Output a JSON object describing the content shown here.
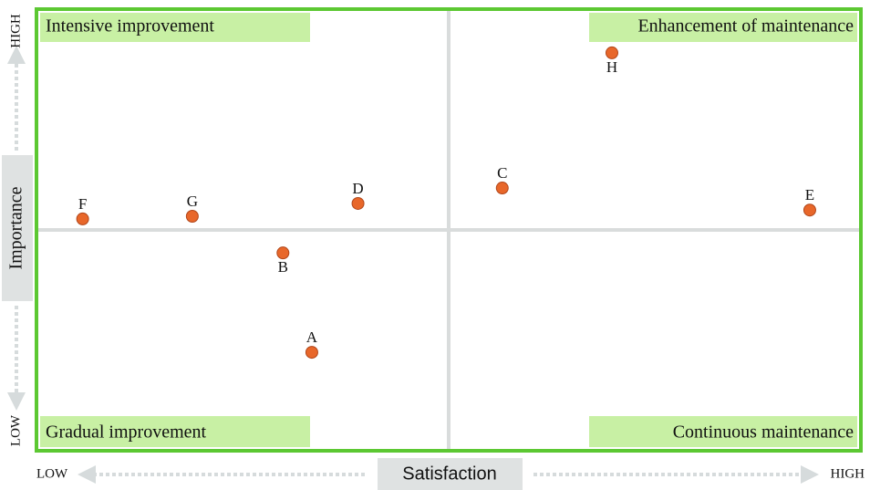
{
  "chart_data": {
    "type": "scatter",
    "x_label": "Satisfaction",
    "y_label": "Importance",
    "quadrants": [
      "Intensive improvement",
      "Enhancement of maintenance",
      "Gradual improvement",
      "Continuous maintenance"
    ],
    "labels": [
      "A",
      "B",
      "C",
      "D",
      "E",
      "F",
      "G",
      "H"
    ],
    "x": [
      33.4,
      29.9,
      56.5,
      39.0,
      93.8,
      5.6,
      18.9,
      69.8
    ],
    "y": [
      22.3,
      44.8,
      59.5,
      56.0,
      54.5,
      52.5,
      53.1,
      90.1
    ],
    "color": "#e8672a",
    "xlim": [
      0,
      100
    ],
    "ylim": [
      0,
      100
    ],
    "xticks": [
      {
        "value": 0,
        "label": "LOW"
      },
      {
        "value": 100,
        "label": "HIGH"
      }
    ],
    "yticks": [
      {
        "value": 0,
        "label": "LOW"
      },
      {
        "value": 100,
        "label": "HIGH"
      }
    ]
  }
}
